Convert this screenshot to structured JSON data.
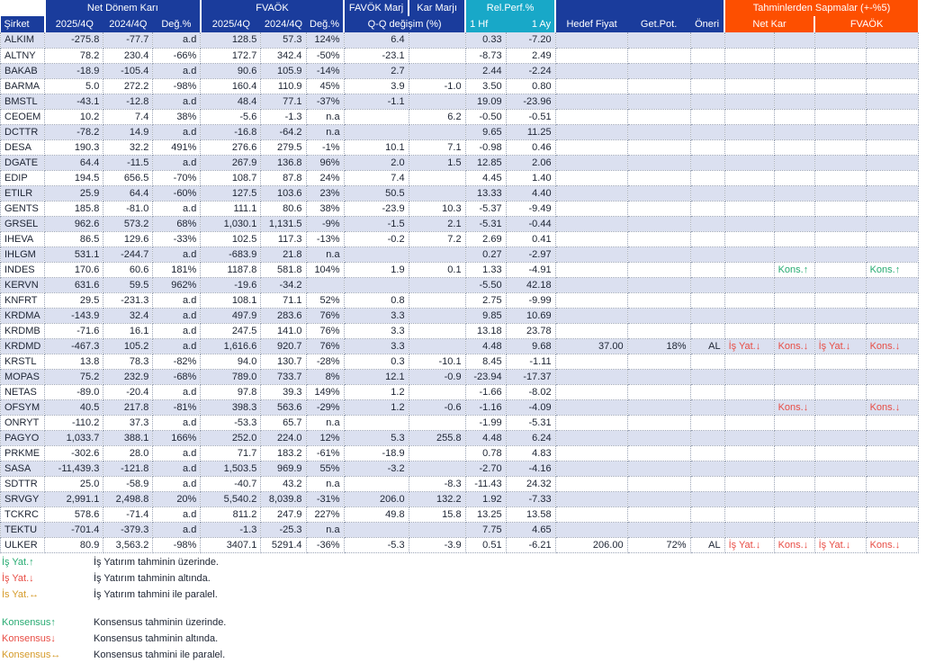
{
  "colors": {
    "header_blue": "#1a3c9c",
    "header_teal": "#18a8c8",
    "header_orange": "#fd4f00",
    "row_stripe": "#dbe0f0",
    "text": "#1d2433",
    "annotation_green": "#27ab72",
    "annotation_red": "#e84c44",
    "annotation_amber": "#d59a28"
  },
  "table": {
    "header": {
      "group_row": [
        {
          "label": "",
          "span": 1,
          "bg": "white"
        },
        {
          "label": "Net Dönem Karı",
          "span": 3,
          "bg": "blue",
          "sep": true
        },
        {
          "label": "FVAÖK",
          "span": 3,
          "bg": "blue",
          "sep": true
        },
        {
          "label": "FAVÖK Marj",
          "span": 1,
          "bg": "blue",
          "sep": true
        },
        {
          "label": "Kar Marjı",
          "span": 1,
          "bg": "blue",
          "sep": true
        },
        {
          "label": "Rel.Perf.%",
          "span": 2,
          "bg": "teal",
          "sep": true
        },
        {
          "label": "",
          "span": 3,
          "bg": "blue",
          "sep": true
        },
        {
          "label": "Tahminlerden Sapmalar (+-%5)",
          "span": 4,
          "bg": "orange",
          "sep": true
        }
      ],
      "col_row": [
        {
          "label": "Şirket",
          "span": 1,
          "bg": "blue",
          "align": "al"
        },
        {
          "label": "2025/4Q",
          "span": 1,
          "bg": "blue",
          "sep": true
        },
        {
          "label": "2024/4Q",
          "span": 1,
          "bg": "blue"
        },
        {
          "label": "Değ.%",
          "span": 1,
          "bg": "blue"
        },
        {
          "label": "2025/4Q",
          "span": 1,
          "bg": "blue",
          "sep": true
        },
        {
          "label": "2024/4Q",
          "span": 1,
          "bg": "blue"
        },
        {
          "label": "Değ.%",
          "span": 1,
          "bg": "blue"
        },
        {
          "label": "Q-Q değişim (%)",
          "span": 2,
          "bg": "blue",
          "sep": true
        },
        {
          "label": "1 Hf",
          "span": 1,
          "bg": "teal",
          "sep": true,
          "align": "al"
        },
        {
          "label": "1 Ay",
          "span": 1,
          "bg": "teal",
          "align": "ar"
        },
        {
          "label": "Hedef Fiyat",
          "span": 1,
          "bg": "blue",
          "sep": true
        },
        {
          "label": "Get.Pot.",
          "span": 1,
          "bg": "blue"
        },
        {
          "label": "Öneri",
          "span": 1,
          "bg": "blue"
        },
        {
          "label": "Net Kar",
          "span": 2,
          "bg": "orange",
          "sep": true
        },
        {
          "label": "FVAÖK",
          "span": 2,
          "bg": "orange",
          "sep": true
        }
      ]
    },
    "columns_key": [
      "sirket",
      "ndk_2025_4q",
      "ndk_2024_4q",
      "ndk_deg",
      "fvaok_2025_4q",
      "fvaok_2024_4q",
      "fvaok_deg",
      "favok_marj_qq",
      "kar_marji_qq",
      "rel_1hf",
      "rel_1ay",
      "hedef_fiyat",
      "get_pot",
      "oneri",
      "sapma_netkar_isyat",
      "sapma_netkar_kons",
      "sapma_fvaok_isyat",
      "sapma_fvaok_kons"
    ],
    "rows": [
      [
        "ALKIM",
        "-275.8",
        "-77.7",
        "a.d",
        "128.5",
        "57.3",
        "124%",
        "6.4",
        "",
        "0.33",
        "-7.20",
        "",
        "",
        "",
        "",
        "",
        "",
        ""
      ],
      [
        "ALTNY",
        "78.2",
        "230.4",
        "-66%",
        "172.7",
        "342.4",
        "-50%",
        "-23.1",
        "",
        "-8.73",
        "2.49",
        "",
        "",
        "",
        "",
        "",
        "",
        ""
      ],
      [
        "BAKAB",
        "-18.9",
        "-105.4",
        "a.d",
        "90.6",
        "105.9",
        "-14%",
        "2.7",
        "",
        "2.44",
        "-2.24",
        "",
        "",
        "",
        "",
        "",
        "",
        ""
      ],
      [
        "BARMA",
        "5.0",
        "272.2",
        "-98%",
        "160.4",
        "110.9",
        "45%",
        "3.9",
        "-1.0",
        "3.50",
        "0.80",
        "",
        "",
        "",
        "",
        "",
        "",
        ""
      ],
      [
        "BMSTL",
        "-43.1",
        "-12.8",
        "a.d",
        "48.4",
        "77.1",
        "-37%",
        "-1.1",
        "",
        "19.09",
        "-23.96",
        "",
        "",
        "",
        "",
        "",
        "",
        ""
      ],
      [
        "CEOEM",
        "10.2",
        "7.4",
        "38%",
        "-5.6",
        "-1.3",
        "n.a",
        "",
        "6.2",
        "-0.50",
        "-0.51",
        "",
        "",
        "",
        "",
        "",
        "",
        ""
      ],
      [
        "DCTTR",
        "-78.2",
        "14.9",
        "a.d",
        "-16.8",
        "-64.2",
        "n.a",
        "",
        "",
        "9.65",
        "11.25",
        "",
        "",
        "",
        "",
        "",
        "",
        ""
      ],
      [
        "DESA",
        "190.3",
        "32.2",
        "491%",
        "276.6",
        "279.5",
        "-1%",
        "10.1",
        "7.1",
        "-0.98",
        "0.46",
        "",
        "",
        "",
        "",
        "",
        "",
        ""
      ],
      [
        "DGATE",
        "64.4",
        "-11.5",
        "a.d",
        "267.9",
        "136.8",
        "96%",
        "2.0",
        "1.5",
        "12.85",
        "2.06",
        "",
        "",
        "",
        "",
        "",
        "",
        ""
      ],
      [
        "EDIP",
        "194.5",
        "656.5",
        "-70%",
        "108.7",
        "87.8",
        "24%",
        "7.4",
        "",
        "4.45",
        "1.40",
        "",
        "",
        "",
        "",
        "",
        "",
        ""
      ],
      [
        "ETILR",
        "25.9",
        "64.4",
        "-60%",
        "127.5",
        "103.6",
        "23%",
        "50.5",
        "",
        "13.33",
        "4.40",
        "",
        "",
        "",
        "",
        "",
        "",
        ""
      ],
      [
        "GENTS",
        "185.8",
        "-81.0",
        "a.d",
        "111.1",
        "80.6",
        "38%",
        "-23.9",
        "10.3",
        "-5.37",
        "-9.49",
        "",
        "",
        "",
        "",
        "",
        "",
        ""
      ],
      [
        "GRSEL",
        "962.6",
        "573.2",
        "68%",
        "1,030.1",
        "1,131.5",
        "-9%",
        "-1.5",
        "2.1",
        "-5.31",
        "-0.44",
        "",
        "",
        "",
        "",
        "",
        "",
        ""
      ],
      [
        "IHEVA",
        "86.5",
        "129.6",
        "-33%",
        "102.5",
        "117.3",
        "-13%",
        "-0.2",
        "7.2",
        "2.69",
        "0.41",
        "",
        "",
        "",
        "",
        "",
        "",
        ""
      ],
      [
        "IHLGM",
        "531.1",
        "-244.7",
        "a.d",
        "-683.9",
        "21.8",
        "n.a",
        "",
        "",
        "0.27",
        "-2.97",
        "",
        "",
        "",
        "",
        "",
        "",
        ""
      ],
      [
        "INDES",
        "170.6",
        "60.6",
        "181%",
        "1187.8",
        "581.8",
        "104%",
        "1.9",
        "0.1",
        "1.33",
        "-4.91",
        "",
        "",
        "",
        "",
        "Kons.↑",
        "",
        "Kons.↑"
      ],
      [
        "KERVN",
        "631.6",
        "59.5",
        "962%",
        "-19.6",
        "-34.2",
        "",
        "",
        "",
        "-5.50",
        "42.18",
        "",
        "",
        "",
        "",
        "",
        "",
        ""
      ],
      [
        "KNFRT",
        "29.5",
        "-231.3",
        "a.d",
        "108.1",
        "71.1",
        "52%",
        "0.8",
        "",
        "2.75",
        "-9.99",
        "",
        "",
        "",
        "",
        "",
        "",
        ""
      ],
      [
        "KRDMA",
        "-143.9",
        "32.4",
        "a.d",
        "497.9",
        "283.6",
        "76%",
        "3.3",
        "",
        "9.85",
        "10.69",
        "",
        "",
        "",
        "",
        "",
        "",
        ""
      ],
      [
        "KRDMB",
        "-71.6",
        "16.1",
        "a.d",
        "247.5",
        "141.0",
        "76%",
        "3.3",
        "",
        "13.18",
        "23.78",
        "",
        "",
        "",
        "",
        "",
        "",
        ""
      ],
      [
        "KRDMD",
        "-467.3",
        "105.2",
        "a.d",
        "1,616.6",
        "920.7",
        "76%",
        "3.3",
        "",
        "4.48",
        "9.68",
        "37.00",
        "18%",
        "AL",
        "İş Yat.↓",
        "Kons.↓",
        "İş Yat.↓",
        "Kons.↓"
      ],
      [
        "KRSTL",
        "13.8",
        "78.3",
        "-82%",
        "94.0",
        "130.7",
        "-28%",
        "0.3",
        "-10.1",
        "8.45",
        "-1.11",
        "",
        "",
        "",
        "",
        "",
        "",
        ""
      ],
      [
        "MOPAS",
        "75.2",
        "232.9",
        "-68%",
        "789.0",
        "733.7",
        "8%",
        "12.1",
        "-0.9",
        "-23.94",
        "-17.37",
        "",
        "",
        "",
        "",
        "",
        "",
        ""
      ],
      [
        "NETAS",
        "-89.0",
        "-20.4",
        "a.d",
        "97.8",
        "39.3",
        "149%",
        "1.2",
        "",
        "-1.66",
        "-8.02",
        "",
        "",
        "",
        "",
        "",
        "",
        ""
      ],
      [
        "OFSYM",
        "40.5",
        "217.8",
        "-81%",
        "398.3",
        "563.6",
        "-29%",
        "1.2",
        "-0.6",
        "-1.16",
        "-4.09",
        "",
        "",
        "",
        "",
        "Kons.↓",
        "",
        "Kons.↓"
      ],
      [
        "ONRYT",
        "-110.2",
        "37.3",
        "a.d",
        "-53.3",
        "65.7",
        "n.a",
        "",
        "",
        "-1.99",
        "-5.31",
        "",
        "",
        "",
        "",
        "",
        "",
        ""
      ],
      [
        "PAGYO",
        "1,033.7",
        "388.1",
        "166%",
        "252.0",
        "224.0",
        "12%",
        "5.3",
        "255.8",
        "4.48",
        "6.24",
        "",
        "",
        "",
        "",
        "",
        "",
        ""
      ],
      [
        "PRKME",
        "-302.6",
        "28.0",
        "a.d",
        "71.7",
        "183.2",
        "-61%",
        "-18.9",
        "",
        "0.78",
        "4.83",
        "",
        "",
        "",
        "",
        "",
        "",
        ""
      ],
      [
        "SASA",
        "-11,439.3",
        "-121.8",
        "a.d",
        "1,503.5",
        "969.9",
        "55%",
        "-3.2",
        "",
        "-2.70",
        "-4.16",
        "",
        "",
        "",
        "",
        "",
        "",
        ""
      ],
      [
        "SDTTR",
        "25.0",
        "-58.9",
        "a.d",
        "-40.7",
        "43.2",
        "n.a",
        "",
        "-8.3",
        "-11.43",
        "24.32",
        "",
        "",
        "",
        "",
        "",
        "",
        ""
      ],
      [
        "SRVGY",
        "2,991.1",
        "2,498.8",
        "20%",
        "5,540.2",
        "8,039.8",
        "-31%",
        "206.0",
        "132.2",
        "1.92",
        "-7.33",
        "",
        "",
        "",
        "",
        "",
        "",
        ""
      ],
      [
        "TCKRC",
        "578.6",
        "-71.4",
        "a.d",
        "811.2",
        "247.9",
        "227%",
        "49.8",
        "15.8",
        "13.25",
        "13.58",
        "",
        "",
        "",
        "",
        "",
        "",
        ""
      ],
      [
        "TEKTU",
        "-701.4",
        "-379.3",
        "a.d",
        "-1.3",
        "-25.3",
        "n.a",
        "",
        "",
        "7.75",
        "4.65",
        "",
        "",
        "",
        "",
        "",
        "",
        ""
      ],
      [
        "ULKER",
        "80.9",
        "3,563.2",
        "-98%",
        "3407.1",
        "5291.4",
        "-36%",
        "-5.3",
        "-3.9",
        "0.51",
        "-6.21",
        "206.00",
        "72%",
        "AL",
        "İş Yat.↓",
        "Kons.↓",
        "İş Yat.↓",
        "Kons.↓"
      ]
    ]
  },
  "legend": {
    "group1": [
      {
        "label": "İş Yat.↑",
        "tone": "up",
        "desc": "İş Yatırım tahminin üzerinde."
      },
      {
        "label": "İş Yat.↓",
        "tone": "down",
        "desc": "İş Yatırım tahminin altında."
      },
      {
        "label": "İs Yat.↔",
        "tone": "flat",
        "desc": "İş Yatırım tahmini ile paralel."
      }
    ],
    "group2": [
      {
        "label": "Konsensus↑",
        "tone": "up",
        "desc": "Konsensus tahminin üzerinde."
      },
      {
        "label": "Konsensus↓",
        "tone": "down",
        "desc": "Konsensus tahminin altında."
      },
      {
        "label": "Konsensus↔",
        "tone": "flat",
        "desc": "Konsensus tahmini ile paralel."
      }
    ]
  }
}
